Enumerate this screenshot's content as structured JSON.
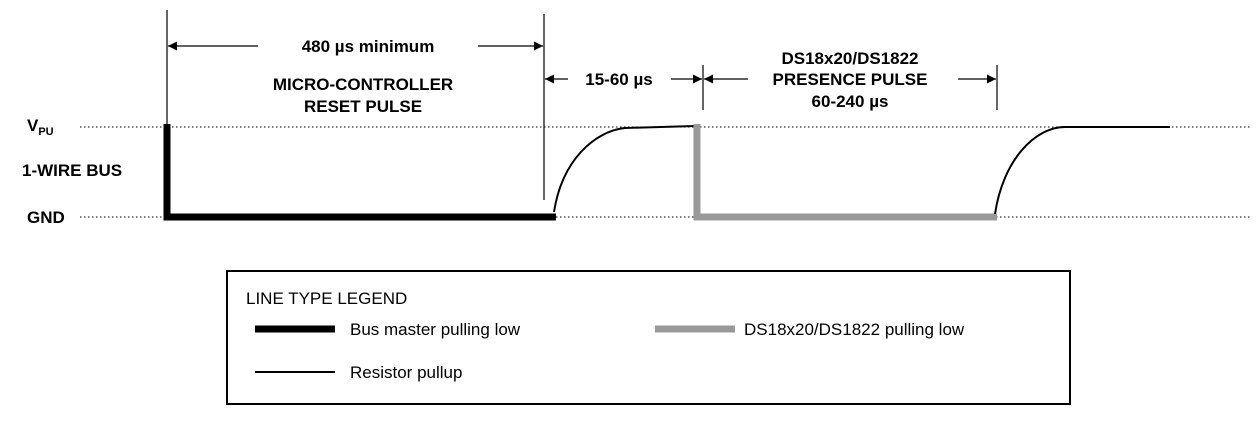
{
  "colors": {
    "bus_master": "#000000",
    "slave": "#999999",
    "pullup": "#000000",
    "background": "#ffffff"
  },
  "signal_levels": {
    "vpu": "V",
    "vpu_sub": "PU",
    "bus": "1-WIRE BUS",
    "gnd": "GND"
  },
  "timing": {
    "reset_duration": "480 µs minimum",
    "reset_title_line1": "MICRO-CONTROLLER",
    "reset_title_line2": "RESET PULSE",
    "wait": "15-60 µs",
    "presence_line1": "DS18x20/DS1822",
    "presence_line2": "PRESENCE PULSE",
    "presence_line3": "60-240 µs"
  },
  "legend": {
    "title": "LINE TYPE LEGEND",
    "bus_master": "Bus master pulling low",
    "slave": "DS18x20/DS1822 pulling low",
    "pullup": "Resistor pullup"
  }
}
